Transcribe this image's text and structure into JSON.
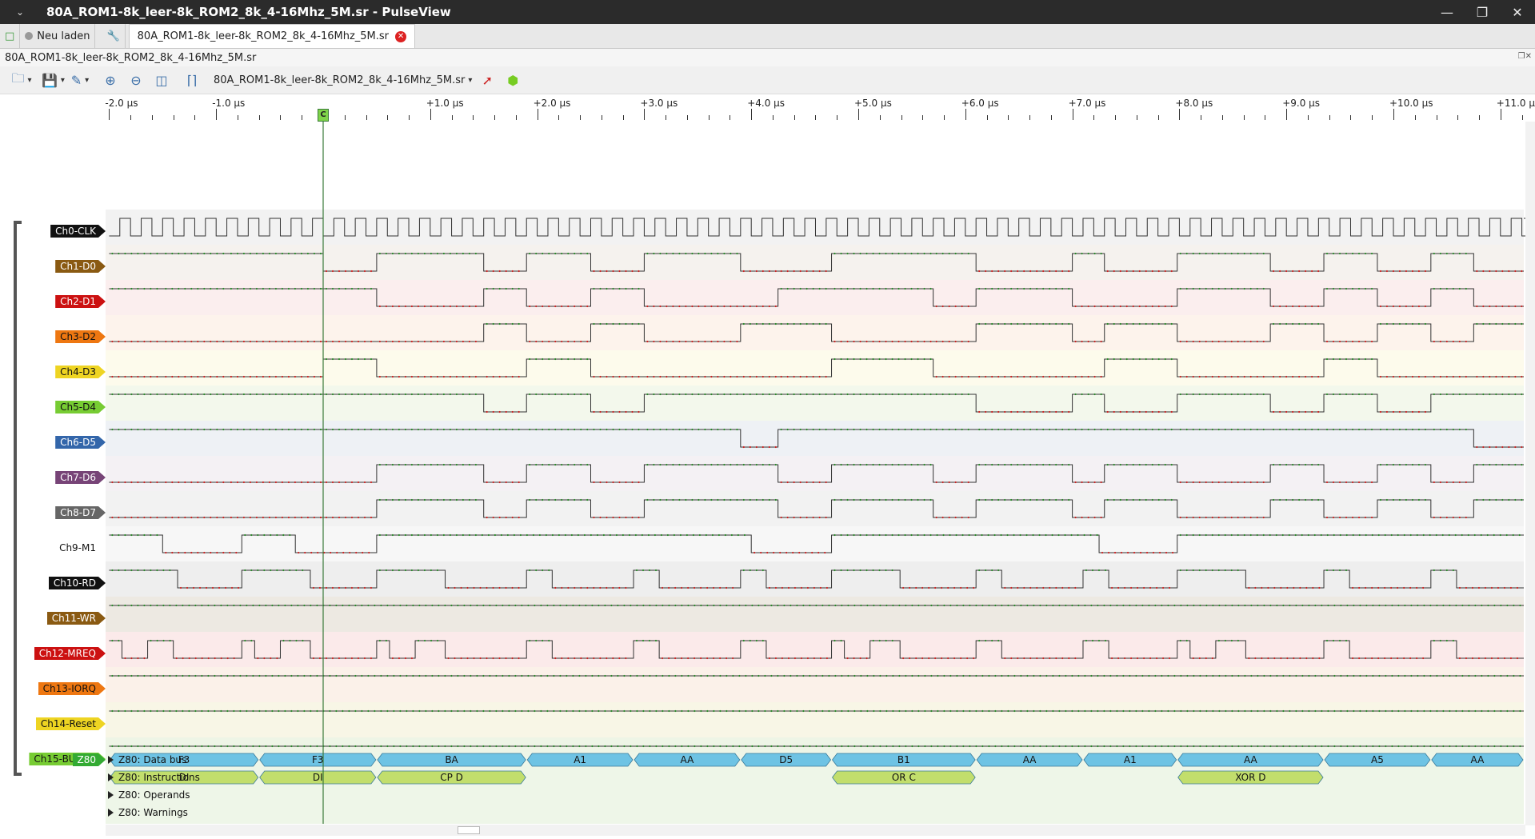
{
  "window": {
    "title": "80A_ROM1-8k_leer-8k_ROM2_8k_4-16Mhz_5M.sr - PulseView",
    "menu_icon": "chevron-down-icon",
    "minimize": "—",
    "maximize": "❐",
    "close": "✕"
  },
  "tabbar": {
    "reload_label": "Neu laden",
    "tab_label": "80A_ROM1-8k_leer-8k_ROM2_8k_4-16Mhz_5M.sr"
  },
  "session": {
    "title": "80A_ROM1-8k_leer-8k_ROM2_8k_4-16Mhz_5M.sr"
  },
  "toolbar": {
    "device_label": "80A_ROM1-8k_leer-8k_ROM2_8k_4-16Mhz_5M.sr"
  },
  "ruler": {
    "ticks": [
      "-2.0 µs",
      "-1.0 µs",
      "+1.0 µs",
      "+2.0 µs",
      "+3.0 µs",
      "+4.0 µs",
      "+5.0 µs",
      "+6.0 µs",
      "+7.0 µs",
      "+8.0 µs",
      "+9.0 µs",
      "+10.0 µs",
      "+11.0 µs"
    ],
    "tick_values_us": [
      -2,
      -1,
      1,
      2,
      3,
      4,
      5,
      6,
      7,
      8,
      9,
      10,
      11
    ],
    "cursor_label": "C",
    "cursor_us": 0
  },
  "channels": [
    {
      "name": "Ch0-CLK",
      "color": "#111111",
      "text": "#ffffff",
      "bg": "#f2f2f2"
    },
    {
      "name": "Ch1-D0",
      "color": "#8a5a12",
      "text": "#ffffff",
      "bg": "#f5f2ee"
    },
    {
      "name": "Ch2-D1",
      "color": "#cc1111",
      "text": "#ffffff",
      "bg": "#fbeeee"
    },
    {
      "name": "Ch3-D2",
      "color": "#ee7711",
      "text": "#111111",
      "bg": "#fdf3ec"
    },
    {
      "name": "Ch4-D3",
      "color": "#eed422",
      "text": "#111111",
      "bg": "#fdfbec"
    },
    {
      "name": "Ch5-D4",
      "color": "#77cc33",
      "text": "#111111",
      "bg": "#f3f8ec"
    },
    {
      "name": "Ch6-D5",
      "color": "#3366aa",
      "text": "#ffffff",
      "bg": "#eef1f5"
    },
    {
      "name": "Ch7-D6",
      "color": "#774477",
      "text": "#ffffff",
      "bg": "#f4f1f4"
    },
    {
      "name": "Ch8-D7",
      "color": "#666666",
      "text": "#ffffff",
      "bg": "#f2f2f2"
    },
    {
      "name": "Ch9-M1",
      "color": "#ffffff",
      "text": "#111111",
      "bg": "#f7f7f7"
    },
    {
      "name": "Ch10-RD",
      "color": "#111111",
      "text": "#ffffff",
      "bg": "#eeeeee"
    },
    {
      "name": "Ch11-WR",
      "color": "#8a5a12",
      "text": "#ffffff",
      "bg": "#ede9e2"
    },
    {
      "name": "Ch12-MREQ",
      "color": "#cc1111",
      "text": "#ffffff",
      "bg": "#fbeaea"
    },
    {
      "name": "Ch13-IORQ",
      "color": "#ee7711",
      "text": "#111111",
      "bg": "#fbf1e9"
    },
    {
      "name": "Ch14-Reset",
      "color": "#eed422",
      "text": "#111111",
      "bg": "#f8f6e6"
    },
    {
      "name": "Ch15-BUSRQ",
      "color": "#77cc33",
      "text": "#111111",
      "bg": "#eef5e6"
    }
  ],
  "decoder": {
    "name": "Z80",
    "rows": [
      "Z80: Data bus",
      "Z80: Instructions",
      "Z80: Operands",
      "Z80: Warnings"
    ],
    "databus": [
      {
        "t0": -2.0,
        "t1": -0.6,
        "v": "F3"
      },
      {
        "t0": -0.6,
        "t1": 0.5,
        "v": "F3"
      },
      {
        "t0": 0.5,
        "t1": 1.9,
        "v": "BA"
      },
      {
        "t0": 1.9,
        "t1": 2.9,
        "v": "A1"
      },
      {
        "t0": 2.9,
        "t1": 3.9,
        "v": "AA"
      },
      {
        "t0": 3.9,
        "t1": 4.75,
        "v": "D5"
      },
      {
        "t0": 4.75,
        "t1": 6.1,
        "v": "B1"
      },
      {
        "t0": 6.1,
        "t1": 7.1,
        "v": "AA"
      },
      {
        "t0": 7.1,
        "t1": 7.98,
        "v": "A1"
      },
      {
        "t0": 7.98,
        "t1": 9.35,
        "v": "AA"
      },
      {
        "t0": 9.35,
        "t1": 10.35,
        "v": "A5"
      },
      {
        "t0": 10.35,
        "t1": 11.25,
        "v": "AA"
      }
    ],
    "instructions": [
      {
        "t0": -2.0,
        "t1": -0.6,
        "v": "DI"
      },
      {
        "t0": -0.6,
        "t1": 0.5,
        "v": "DI"
      },
      {
        "t0": 0.5,
        "t1": 1.9,
        "v": "CP D"
      },
      {
        "t0": 4.75,
        "t1": 6.1,
        "v": "OR C"
      },
      {
        "t0": 7.98,
        "t1": 9.35,
        "v": "XOR D"
      }
    ]
  },
  "colors": {
    "decoder_bus": "#6ec3e4",
    "decoder_instr": "#c2de6c",
    "wave_high": "#2a8a2a",
    "wave_low": "#cc2222",
    "cursor": "#3a7a3a"
  }
}
